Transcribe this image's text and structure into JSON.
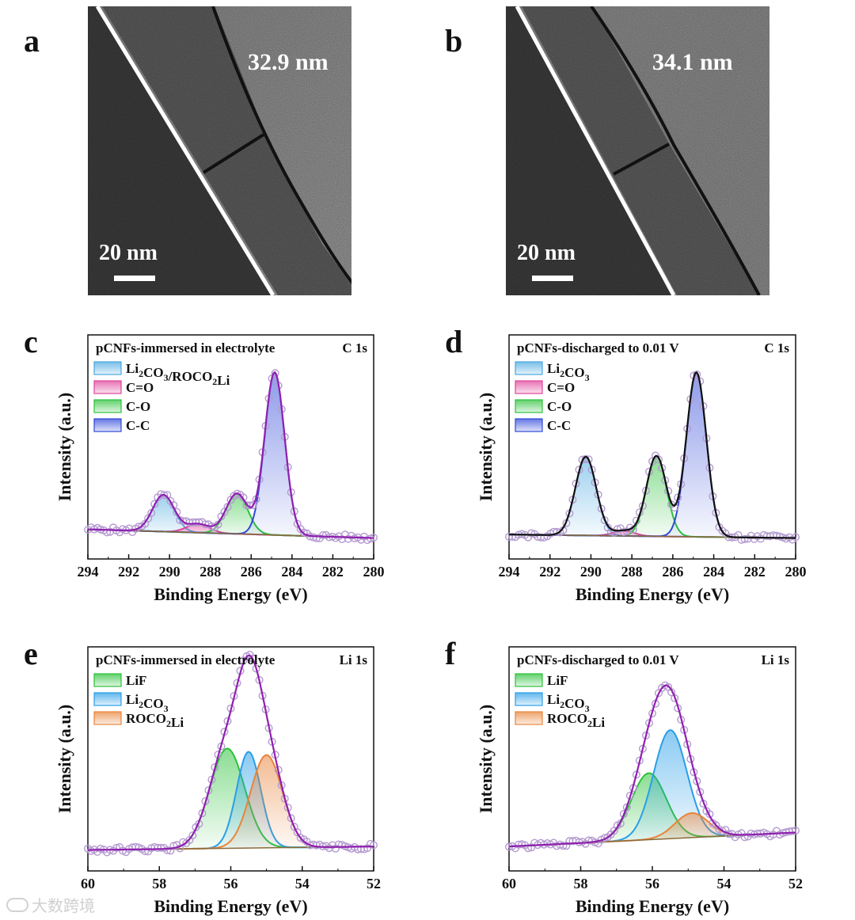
{
  "panels": {
    "a": {
      "label": "a",
      "measure": "32.9 nm",
      "scale": "20 nm"
    },
    "b": {
      "label": "b",
      "measure": "34.1 nm",
      "scale": "20 nm"
    },
    "c": {
      "label": "c"
    },
    "d": {
      "label": "d"
    },
    "e": {
      "label": "e"
    },
    "f": {
      "label": "f"
    }
  },
  "watermark": "大数跨境",
  "colors": {
    "sei_blue": "#4aa8e0",
    "co_pink": "#e0449a",
    "c_o_green": "#2bc23a",
    "cc_blue": "#3048d8",
    "lif_green": "#2bc23a",
    "li2co3_blue": "#2a9ee8",
    "roco2li_orange": "#e8843a",
    "envelope_purple": "#9020b0",
    "data_circle": "#b49ad0"
  },
  "chart_data": [
    {
      "type": "line",
      "panel": "c",
      "title": "pCNFs-immersed in electrolyte",
      "region": "C 1s",
      "xlabel": "Binding Energy (eV)",
      "ylabel": "Intensity (a.u.)",
      "xlim": [
        294,
        280
      ],
      "ylim": [
        0,
        100
      ],
      "xticks": [
        "294",
        "292",
        "290",
        "288",
        "286",
        "284",
        "282",
        "280"
      ],
      "baseline": [
        7,
        2
      ],
      "envelope_color": "#9020b0",
      "peaks": [
        {
          "name": "Li2CO3/ROCO2Li",
          "label_main": "Li",
          "label_sub": "2",
          "label_rest": "CO",
          "label_sub2": "3",
          "label_tail": "/ROCO",
          "label_sub3": "2",
          "label_tail2": "Li",
          "center": 290.3,
          "height": 21,
          "fwhm": 1.25,
          "color": "#4aa8e0"
        },
        {
          "name": "C=O",
          "label_main": "C=O",
          "center": 288.6,
          "height": 5,
          "fwhm": 1.3,
          "color": "#e0449a"
        },
        {
          "name": "C-O",
          "label_main": "C-O",
          "center": 286.7,
          "height": 23,
          "fwhm": 1.25,
          "color": "#2bc23a"
        },
        {
          "name": "C-C",
          "label_main": "C-C",
          "center": 284.85,
          "height": 93,
          "fwhm": 1.15,
          "color": "#3048d8"
        }
      ]
    },
    {
      "type": "line",
      "panel": "d",
      "title": "pCNFs-discharged to 0.01 V",
      "region": "C 1s",
      "xlabel": "Binding Energy (eV)",
      "ylabel": "Intensity (a.u.)",
      "xlim": [
        294,
        280
      ],
      "ylim": [
        0,
        100
      ],
      "xticks": [
        "294",
        "292",
        "290",
        "288",
        "286",
        "284",
        "282",
        "280"
      ],
      "baseline": [
        4,
        2
      ],
      "envelope_color": "#111111",
      "peaks": [
        {
          "name": "Li2CO3",
          "label_main": "Li",
          "label_sub": "2",
          "label_rest": "CO",
          "label_sub2": "3",
          "center": 290.25,
          "height": 45,
          "fwhm": 1.2,
          "color": "#4aa8e0"
        },
        {
          "name": "C=O",
          "label_main": "C=O",
          "center": 288.4,
          "height": 3,
          "fwhm": 1.2,
          "color": "#e0449a"
        },
        {
          "name": "C-O",
          "label_main": "C-O",
          "center": 286.8,
          "height": 46,
          "fwhm": 1.15,
          "color": "#2bc23a"
        },
        {
          "name": "C-C",
          "label_main": "C-C",
          "center": 284.85,
          "height": 94,
          "fwhm": 1.15,
          "color": "#3048d8"
        }
      ]
    },
    {
      "type": "line",
      "panel": "e",
      "title": "pCNFs-immersed in electrolyte",
      "region": "Li 1s",
      "xlabel": "Binding Energy (eV)",
      "ylabel": "Intensity (a.u.)",
      "xlim": [
        60,
        52
      ],
      "ylim": [
        0,
        100
      ],
      "xticks": [
        "60",
        "58",
        "56",
        "54",
        "52"
      ],
      "baseline": [
        2,
        4
      ],
      "envelope_color": "#9020b0",
      "peaks": [
        {
          "name": "LiF",
          "label_main": "LiF",
          "center": 56.1,
          "height": 57,
          "fwhm": 1.15,
          "color": "#2bc23a"
        },
        {
          "name": "Li2CO3",
          "label_main": "Li",
          "label_sub": "2",
          "label_rest": "CO",
          "label_sub2": "3",
          "center": 55.5,
          "height": 55,
          "fwhm": 0.8,
          "color": "#2a9ee8"
        },
        {
          "name": "ROCO2Li",
          "label_main": "ROCO",
          "label_sub": "2",
          "label_rest": "Li",
          "center": 55.0,
          "height": 53,
          "fwhm": 1.05,
          "color": "#e8843a"
        }
      ]
    },
    {
      "type": "line",
      "panel": "f",
      "title": "pCNFs-discharged to 0.01 V",
      "region": "Li 1s",
      "xlabel": "Binding Energy (eV)",
      "ylabel": "Intensity (a.u.)",
      "xlim": [
        60,
        52
      ],
      "ylim": [
        0,
        100
      ],
      "xticks": [
        "60",
        "58",
        "56",
        "54",
        "52"
      ],
      "baseline": [
        4,
        12
      ],
      "envelope_color": "#9020b0",
      "peaks": [
        {
          "name": "LiF",
          "label_main": "LiF",
          "center": 56.1,
          "height": 38,
          "fwhm": 1.15,
          "color": "#2bc23a"
        },
        {
          "name": "Li2CO3",
          "label_main": "Li",
          "label_sub": "2",
          "label_rest": "CO",
          "label_sub2": "3",
          "center": 55.5,
          "height": 62,
          "fwhm": 1.1,
          "color": "#2a9ee8"
        },
        {
          "name": "ROCO2Li",
          "label_main": "ROCO",
          "label_sub": "2",
          "label_rest": "Li",
          "center": 54.9,
          "height": 14,
          "fwhm": 1.1,
          "color": "#e8843a"
        }
      ]
    }
  ]
}
